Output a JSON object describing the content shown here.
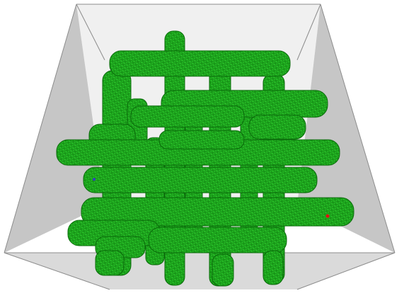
{
  "viewport": {
    "background": "#ffffff",
    "room_colors": {
      "back_wall": "#f0f0f0",
      "side_wall": "#c8c8c8",
      "floor": "#dedede",
      "edge": "#8c8c8c"
    },
    "lattice": {
      "color": "#1fa81f",
      "mesh_color": "#0f7f0f",
      "rendering": "wireframe"
    },
    "markers": [
      {
        "name": "red-marker",
        "color": "#e01010"
      },
      {
        "name": "blue-marker",
        "color": "#3040c0"
      }
    ]
  }
}
